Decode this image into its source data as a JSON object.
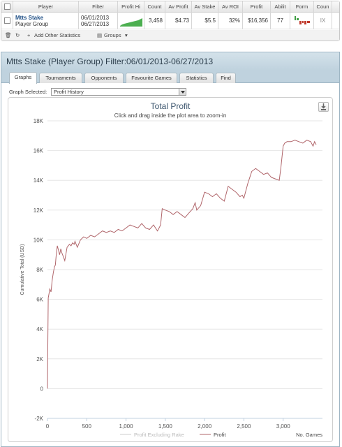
{
  "stats_table": {
    "columns": [
      "Player",
      "Filter",
      "Profit Hi",
      "Count",
      "Av Profit",
      "Av Stake",
      "Av ROI",
      "Profit",
      "Abilit",
      "Form",
      "Coun"
    ],
    "row": {
      "player_name": "Mtts Stake",
      "player_group": "Player Group",
      "filter_from": "06/01/2013",
      "filter_to": "06/27/2013",
      "count": "3,458",
      "av_profit": "$4.73",
      "av_stake": "$5.5",
      "av_roi": "32%",
      "profit": "$16,356",
      "ability": "77",
      "coun": "IX"
    },
    "toolbar": {
      "add_stats_label": "Add Other Statistics",
      "groups_label": "Groups"
    }
  },
  "window": {
    "title": "Mtts Stake (Player Group) Filter:06/01/2013-06/27/2013",
    "tabs": [
      "Graphs",
      "Tournaments",
      "Opponents",
      "Favourite Games",
      "Statistics",
      "Find"
    ],
    "active_tab": "Graphs",
    "graph_selected_label": "Graph Selected:",
    "graph_selected_value": "Profit History"
  },
  "colors": {
    "profit_line": "#b0656a",
    "excl_rake_line": "#cccccc",
    "sparkline": "#4caf50",
    "form_red": "#c0392b",
    "form_green": "#43a047"
  },
  "chart_data": {
    "type": "line",
    "title": "Total Profit",
    "subtitle": "Click and drag inside the plot area to zoom-in",
    "ylabel": "Cumulative Total (USD)",
    "xlabel": "No. Games",
    "ylim": [
      -2000,
      18000
    ],
    "xlim": [
      0,
      3500
    ],
    "y_ticks": [
      "-2K",
      "0",
      "2K",
      "4K",
      "6K",
      "8K",
      "10K",
      "12K",
      "14K",
      "16K",
      "18K"
    ],
    "x_ticks": [
      "0",
      "500",
      "1,000",
      "1,500",
      "2,000",
      "2,500",
      "3,000"
    ],
    "legend": [
      "Profit Excluding Rake",
      "Profit"
    ],
    "legend_position": "bottom-right",
    "series": [
      {
        "name": "Profit",
        "x": [
          0,
          5,
          10,
          20,
          30,
          45,
          60,
          75,
          90,
          100,
          110,
          125,
          140,
          155,
          170,
          185,
          200,
          220,
          250,
          280,
          300,
          320,
          340,
          350,
          380,
          420,
          460,
          500,
          550,
          600,
          650,
          700,
          750,
          800,
          850,
          900,
          950,
          1000,
          1050,
          1100,
          1150,
          1200,
          1250,
          1300,
          1350,
          1400,
          1420,
          1440,
          1460,
          1500,
          1550,
          1600,
          1650,
          1700,
          1750,
          1800,
          1850,
          1880,
          1900,
          1950,
          2000,
          2050,
          2100,
          2150,
          2200,
          2250,
          2300,
          2350,
          2400,
          2450,
          2480,
          2500,
          2550,
          2600,
          2650,
          2700,
          2750,
          2800,
          2850,
          2900,
          2950,
          2970,
          3000,
          3020,
          3050,
          3100,
          3150,
          3200,
          3250,
          3300,
          3350,
          3380,
          3400,
          3420
        ],
        "values": [
          0,
          3500,
          6100,
          6400,
          6700,
          6500,
          7300,
          7800,
          8200,
          8300,
          8900,
          9600,
          9300,
          9000,
          9400,
          9100,
          8900,
          8600,
          9500,
          9700,
          9600,
          9800,
          9700,
          9900,
          9500,
          10000,
          10200,
          10100,
          10300,
          10200,
          10400,
          10600,
          10500,
          10600,
          10500,
          10700,
          10600,
          10800,
          11000,
          10900,
          10800,
          11100,
          10800,
          10700,
          11000,
          10600,
          10800,
          11000,
          12100,
          12000,
          11900,
          11700,
          11900,
          11700,
          11500,
          11800,
          12100,
          12500,
          12000,
          12300,
          13200,
          13100,
          12900,
          13100,
          12800,
          12600,
          13600,
          13400,
          13200,
          12900,
          13000,
          12800,
          13800,
          14600,
          14800,
          14600,
          14400,
          14500,
          14200,
          14100,
          14000,
          14800,
          16300,
          16500,
          16600,
          16600,
          16700,
          16600,
          16500,
          16700,
          16600,
          16300,
          16600,
          16400
        ]
      }
    ]
  }
}
